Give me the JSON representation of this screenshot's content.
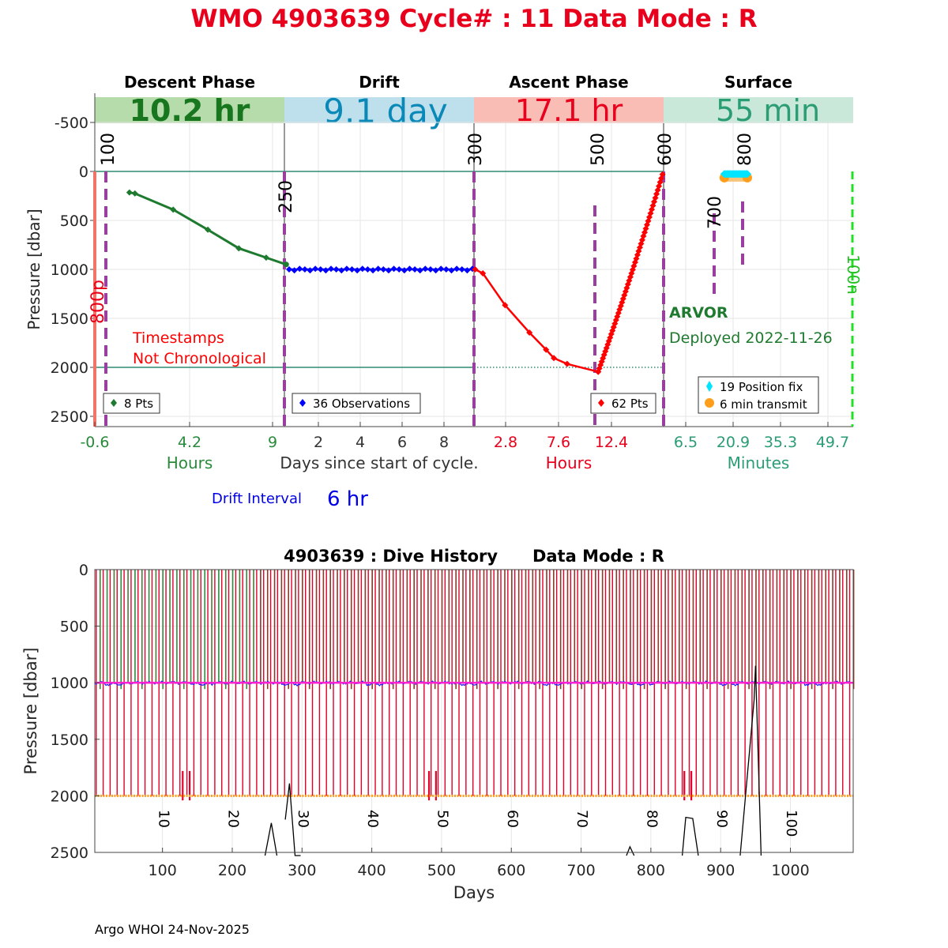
{
  "header": {
    "title": "WMO 4903639   Cycle# : 11   Data Mode : R",
    "title_color": "#e8001c"
  },
  "top_panel": {
    "ylabel": "Pressure [dbar]",
    "ylim": [
      -800,
      2600
    ],
    "y_ticks": [
      -500,
      0,
      500,
      1000,
      1500,
      2000,
      2500
    ],
    "reference_lines": [
      0,
      2000
    ],
    "phases": [
      {
        "name": "Descent Phase",
        "duration": "10.2 hr",
        "band_color": "#b6dcab",
        "duration_color": "#17761e"
      },
      {
        "name": "Drift",
        "duration": "9.1 day",
        "band_color": "#bde0ec",
        "duration_color": "#0a89b8"
      },
      {
        "name": "Ascent Phase",
        "duration": "17.1 hr",
        "band_color": "#f9bdb6",
        "duration_color": "#e8001c"
      },
      {
        "name": "Surface",
        "duration": "55 min",
        "band_color": "#c9e8d9",
        "duration_color": "#2a9d74"
      }
    ],
    "x_axes": [
      {
        "ticks": [
          "-0.6",
          "4.2",
          "9"
        ],
        "label": "Hours",
        "color": "#2a8a3c"
      },
      {
        "ticks": [
          "2",
          "4",
          "6",
          "8"
        ],
        "label": "Days since start of cycle.",
        "color": "#333333"
      },
      {
        "ticks": [
          "2.8",
          "7.6",
          "12.4"
        ],
        "label": "Hours",
        "color": "#e8001c"
      },
      {
        "ticks": [
          "6.5",
          "20.9",
          "35.3",
          "49.7"
        ],
        "label": "Minutes",
        "color": "#2a9d74"
      }
    ],
    "markers": [
      "100",
      "250",
      "300",
      "500",
      "600",
      "700",
      "800",
      "800p",
      "100n"
    ],
    "warning": [
      "Timestamps",
      "Not Chronological"
    ],
    "float_type": "ARVOR",
    "deployed": "Deployed 2022-11-26",
    "legends": {
      "descent": "8 Pts",
      "drift": "36 Observations",
      "ascent": "62 Pts",
      "surface_fix": "19 Position fix",
      "surface_transmit": "6 min transmit"
    },
    "drift_interval_label": "Drift Interval",
    "drift_interval_value": "6 hr"
  },
  "chart_data": [
    {
      "type": "line",
      "title": "Descent Phase",
      "xlabel": "Hours",
      "ylabel": "Pressure [dbar]",
      "xlim": [
        -0.6,
        9.8
      ],
      "ylim": [
        -800,
        2600
      ],
      "x": [
        1.3,
        1.6,
        3.7,
        5.6,
        7.3,
        8.8,
        9.9
      ],
      "y": [
        215,
        225,
        390,
        595,
        785,
        880,
        950
      ],
      "color": "#1e7a2e"
    },
    {
      "type": "line",
      "title": "Drift",
      "xlabel": "Days since start of cycle.",
      "xlim": [
        0.4,
        9.4
      ],
      "y_value": 1000,
      "n_points": 36,
      "color": "#0000ff"
    },
    {
      "type": "line",
      "title": "Ascent Phase",
      "xlabel": "Hours",
      "xlim": [
        0.4,
        17.5
      ],
      "start": [
        0.5,
        1000
      ],
      "bottom_point": [
        11.6,
        2045
      ],
      "series": [
        {
          "name": "descent-to-park",
          "x": [
            0.5,
            1.2,
            3.2,
            5.4,
            6.9,
            7.6,
            8.8,
            11.6
          ],
          "y": [
            1000,
            1040,
            1365,
            1645,
            1820,
            1905,
            1965,
            2045
          ]
        },
        {
          "name": "ascent",
          "x": [
            11.6,
            17.4
          ],
          "y": [
            2045,
            30
          ]
        }
      ],
      "color": "#ff0000"
    },
    {
      "type": "scatter",
      "title": "Surface",
      "xlabel": "Minutes",
      "xlim": [
        -0.7,
        59.3
      ],
      "position_fix": {
        "x_range": [
          18.5,
          25.8
        ],
        "y": 50,
        "count": 19,
        "color": "#00e5ff"
      },
      "transmit": {
        "x_range": [
          18.5,
          25.8
        ],
        "y": 60,
        "color": "#ff9e1a"
      }
    },
    {
      "type": "line",
      "title": "4903639 : Dive History      Data Mode : R",
      "xlabel": "Days",
      "ylabel": "Pressure [dbar]",
      "xlim": [
        3,
        1090
      ],
      "ylim": [
        0,
        2500
      ],
      "x_ticks": [
        100,
        200,
        300,
        400,
        500,
        600,
        700,
        800,
        900,
        1000
      ],
      "y_ticks": [
        0,
        500,
        1000,
        1500,
        2000,
        2500
      ],
      "park_pressure": 1000,
      "profile_pressure": 2000,
      "profile_spacing_days": 10,
      "cycle_labels": [
        "10",
        "20",
        "30",
        "40",
        "50",
        "60",
        "70",
        "80",
        "90",
        "100"
      ],
      "cycle_label_days": [
        95,
        195,
        295,
        395,
        495,
        595,
        695,
        795,
        895,
        995
      ],
      "depth_trace": {
        "x": [
          247,
          256,
          264,
          276,
          282,
          290,
          298,
          765,
          770,
          776,
          845,
          850,
          860,
          868,
          928,
          948,
          950,
          958
        ],
        "y": [
          2600,
          2240,
          2600,
          2210,
          1890,
          2600,
          2600,
          2600,
          2450,
          2600,
          2600,
          2190,
          2200,
          2600,
          2600,
          1150,
          850,
          2600
        ]
      }
    }
  ],
  "footer": "Argo WHOI 24-Nov-2025"
}
